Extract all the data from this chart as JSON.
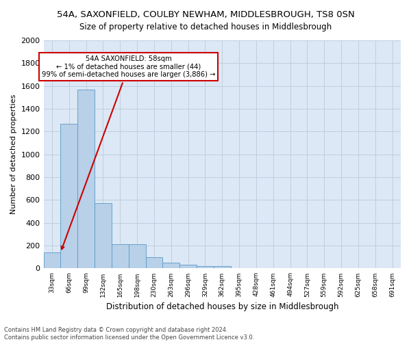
{
  "title": "54A, SAXONFIELD, COULBY NEWHAM, MIDDLESBROUGH, TS8 0SN",
  "subtitle": "Size of property relative to detached houses in Middlesbrough",
  "xlabel": "Distribution of detached houses by size in Middlesbrough",
  "ylabel": "Number of detached properties",
  "bg_color": "#dce8f5",
  "bar_color": "#b8d0e8",
  "bar_edge_color": "#5a9ac8",
  "categories": [
    "33sqm",
    "66sqm",
    "99sqm",
    "132sqm",
    "165sqm",
    "198sqm",
    "230sqm",
    "263sqm",
    "296sqm",
    "329sqm",
    "362sqm",
    "395sqm",
    "428sqm",
    "461sqm",
    "494sqm",
    "527sqm",
    "559sqm",
    "592sqm",
    "625sqm",
    "658sqm",
    "691sqm"
  ],
  "values": [
    140,
    1270,
    1570,
    570,
    215,
    215,
    100,
    50,
    30,
    20,
    20,
    0,
    0,
    0,
    0,
    0,
    0,
    0,
    0,
    0,
    0
  ],
  "ylim": [
    0,
    2000
  ],
  "yticks": [
    0,
    200,
    400,
    600,
    800,
    1000,
    1200,
    1400,
    1600,
    1800,
    2000
  ],
  "annotation_title": "54A SAXONFIELD: 58sqm",
  "annotation_line1": "← 1% of detached houses are smaller (44)",
  "annotation_line2": "99% of semi-detached houses are larger (3,886) →",
  "footer_line1": "Contains HM Land Registry data © Crown copyright and database right 2024.",
  "footer_line2": "Contains public sector information licensed under the Open Government Licence v3.0.",
  "grid_color": "#c0cedd"
}
